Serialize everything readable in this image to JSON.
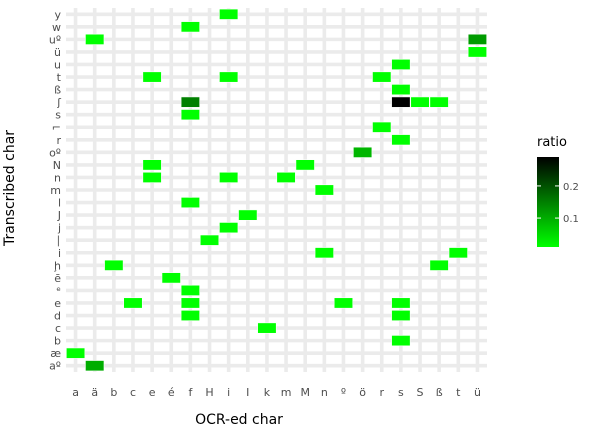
{
  "chart_data": {
    "type": "heatmap",
    "xlabel": "OCR-ed char",
    "ylabel": "Transcribed char",
    "x_categories": [
      "a",
      "ä",
      "b",
      "c",
      "e",
      "é",
      "f",
      "H",
      "i",
      "I",
      "k",
      "m",
      "M",
      "n",
      "º",
      "ö",
      "r",
      "s",
      "S",
      "ß",
      "t",
      "ü"
    ],
    "y_categories": [
      "aº",
      "æ",
      "b",
      "c",
      "d",
      "e",
      "ᵉ",
      "ē",
      "ḩ",
      "i",
      "∣",
      "j",
      "J",
      "l",
      "m",
      "n",
      "N",
      "oº",
      "r",
      "⌐",
      "s",
      "ʃ",
      "ß",
      "t",
      "u",
      "ü",
      "uº",
      "w",
      "y"
    ],
    "legend": {
      "title": "ratio",
      "ticks": [
        0.1,
        0.2
      ],
      "range": [
        0.01,
        0.29
      ],
      "low_color": "#00ff00",
      "high_color": "#000000",
      "position": "right"
    },
    "grid": true,
    "cells": [
      {
        "x": "i",
        "y": "y",
        "value": 0.01
      },
      {
        "x": "f",
        "y": "w",
        "value": 0.01
      },
      {
        "x": "ä",
        "y": "uº",
        "value": 0.01
      },
      {
        "x": "ü",
        "y": "uº",
        "value": 0.12
      },
      {
        "x": "ü",
        "y": "ü",
        "value": 0.01
      },
      {
        "x": "s",
        "y": "u",
        "value": 0.01
      },
      {
        "x": "e",
        "y": "t",
        "value": 0.01
      },
      {
        "x": "i",
        "y": "t",
        "value": 0.01
      },
      {
        "x": "r",
        "y": "t",
        "value": 0.01
      },
      {
        "x": "s",
        "y": "ß",
        "value": 0.01
      },
      {
        "x": "f",
        "y": "ʃ",
        "value": 0.15
      },
      {
        "x": "s",
        "y": "ʃ",
        "value": 0.29
      },
      {
        "x": "S",
        "y": "ʃ",
        "value": 0.01
      },
      {
        "x": "ß",
        "y": "ʃ",
        "value": 0.01
      },
      {
        "x": "f",
        "y": "s",
        "value": 0.01
      },
      {
        "x": "r",
        "y": "⌐",
        "value": 0.01
      },
      {
        "x": "s",
        "y": "r",
        "value": 0.01
      },
      {
        "x": "ö",
        "y": "oº",
        "value": 0.09
      },
      {
        "x": "e",
        "y": "N",
        "value": 0.01
      },
      {
        "x": "M",
        "y": "N",
        "value": 0.01
      },
      {
        "x": "e",
        "y": "n",
        "value": 0.01
      },
      {
        "x": "i",
        "y": "n",
        "value": 0.01
      },
      {
        "x": "m",
        "y": "n",
        "value": 0.01
      },
      {
        "x": "n",
        "y": "m",
        "value": 0.01
      },
      {
        "x": "f",
        "y": "l",
        "value": 0.01
      },
      {
        "x": "I",
        "y": "J",
        "value": 0.01
      },
      {
        "x": "i",
        "y": "j",
        "value": 0.01
      },
      {
        "x": "H",
        "y": "∣",
        "value": 0.01
      },
      {
        "x": "n",
        "y": "i",
        "value": 0.01
      },
      {
        "x": "t",
        "y": "i",
        "value": 0.01
      },
      {
        "x": "b",
        "y": "ḩ",
        "value": 0.01
      },
      {
        "x": "ß",
        "y": "ḩ",
        "value": 0.01
      },
      {
        "x": "é",
        "y": "ē",
        "value": 0.01
      },
      {
        "x": "f",
        "y": "ᵉ",
        "value": 0.01
      },
      {
        "x": "c",
        "y": "e",
        "value": 0.01
      },
      {
        "x": "f",
        "y": "e",
        "value": 0.01
      },
      {
        "x": "º",
        "y": "e",
        "value": 0.01
      },
      {
        "x": "s",
        "y": "e",
        "value": 0.01
      },
      {
        "x": "f",
        "y": "d",
        "value": 0.01
      },
      {
        "x": "s",
        "y": "d",
        "value": 0.01
      },
      {
        "x": "k",
        "y": "c",
        "value": 0.01
      },
      {
        "x": "s",
        "y": "b",
        "value": 0.01
      },
      {
        "x": "a",
        "y": "æ",
        "value": 0.01
      },
      {
        "x": "ä",
        "y": "aº",
        "value": 0.1
      }
    ]
  }
}
